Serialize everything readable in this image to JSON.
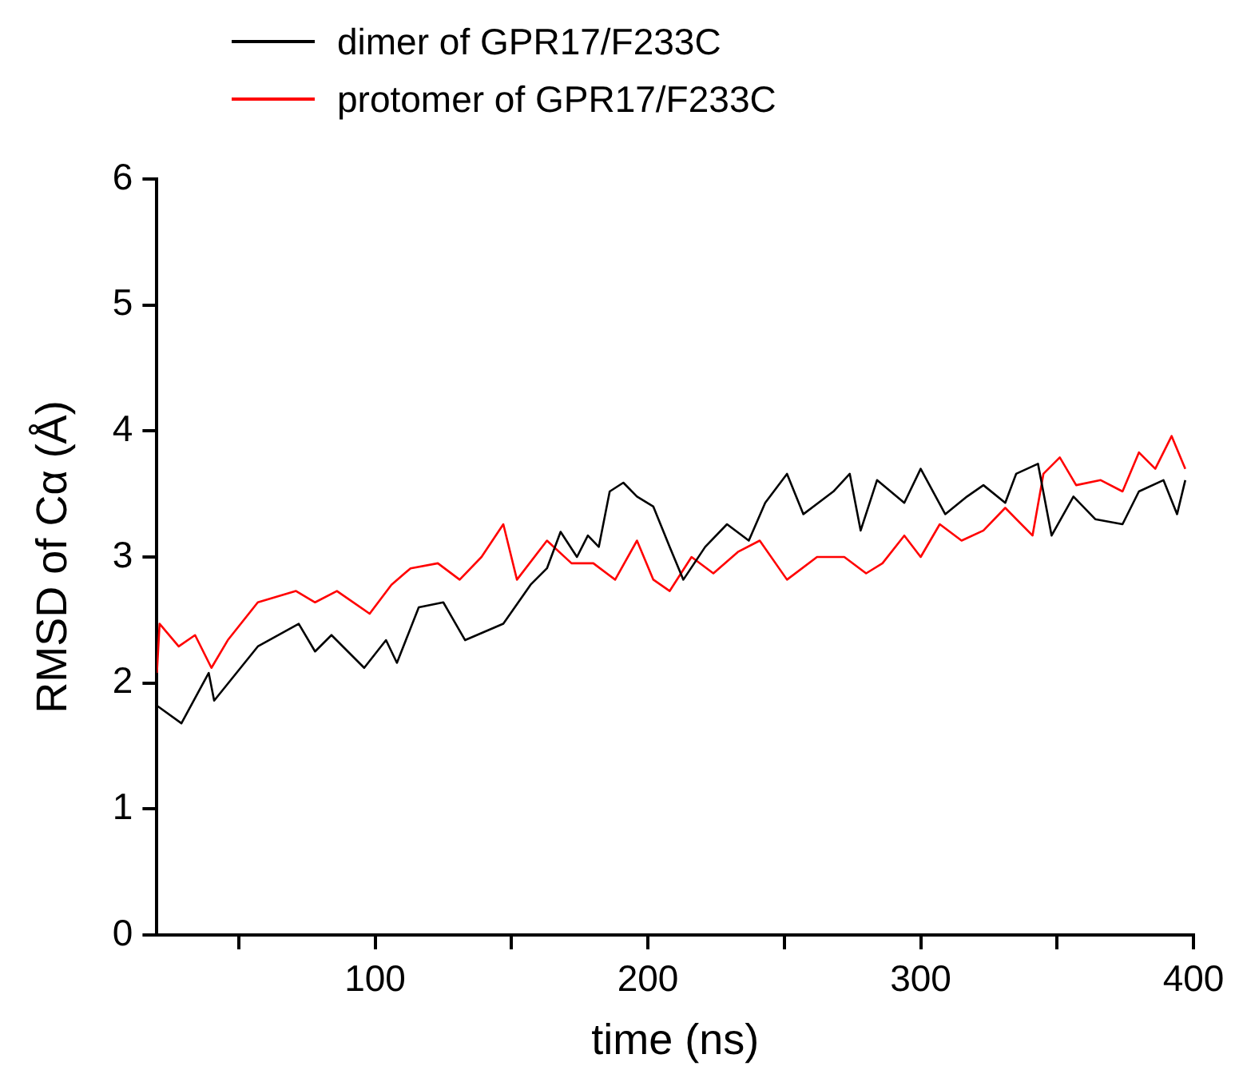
{
  "chart_data": {
    "type": "line",
    "xlabel": "time (ns)",
    "ylabel": "RMSD of Cα (Å)",
    "xlim": [
      20,
      400
    ],
    "xticks": [
      {
        "value": 50,
        "label": null
      },
      100,
      {
        "value": 150,
        "label": null
      },
      200,
      {
        "value": 250,
        "label": null
      },
      300,
      {
        "value": 350,
        "label": null
      },
      400
    ],
    "ylim": [
      0,
      6
    ],
    "yticks": [
      0,
      1,
      2,
      3,
      4,
      5,
      6
    ],
    "grid": false,
    "legend": "top left",
    "marker": "none",
    "line_style": "solid",
    "series": [
      {
        "name": "dimer of GPR17/F233C",
        "color": "#000000",
        "x": [
          20,
          29,
          39,
          41,
          57,
          72,
          78,
          84,
          96,
          104,
          108,
          116,
          125,
          133,
          147,
          157,
          163,
          168,
          174,
          178,
          182,
          186,
          191,
          196,
          202,
          208,
          213,
          221,
          229,
          237,
          243,
          251,
          257,
          268,
          274,
          278,
          284,
          294,
          300,
          309,
          317,
          323,
          331,
          335,
          343,
          348,
          356,
          364,
          374,
          380,
          389,
          394,
          397
        ],
        "values": [
          1.82,
          1.68,
          2.08,
          1.86,
          2.29,
          2.47,
          2.25,
          2.38,
          2.12,
          2.34,
          2.16,
          2.6,
          2.64,
          2.34,
          2.47,
          2.78,
          2.91,
          3.2,
          3.0,
          3.17,
          3.08,
          3.52,
          3.59,
          3.48,
          3.4,
          3.08,
          2.82,
          3.08,
          3.26,
          3.13,
          3.43,
          3.66,
          3.34,
          3.52,
          3.66,
          3.21,
          3.61,
          3.43,
          3.7,
          3.34,
          3.48,
          3.57,
          3.43,
          3.66,
          3.74,
          3.17,
          3.48,
          3.3,
          3.26,
          3.52,
          3.61,
          3.34,
          3.61
        ]
      },
      {
        "name": "protomer of GPR17/F233C",
        "color": "#ff0000",
        "x": [
          20,
          21,
          28,
          34,
          40,
          46,
          57,
          71,
          78,
          86,
          98,
          106,
          113,
          123,
          131,
          139,
          147,
          152,
          163,
          172,
          180,
          188,
          196,
          202,
          208,
          216,
          224,
          233,
          241,
          251,
          262,
          272,
          280,
          286,
          294,
          300,
          307,
          315,
          323,
          331,
          341,
          345,
          351,
          357,
          366,
          374,
          380,
          386,
          392,
          397
        ],
        "values": [
          2.08,
          2.47,
          2.29,
          2.38,
          2.12,
          2.34,
          2.64,
          2.73,
          2.64,
          2.73,
          2.55,
          2.78,
          2.91,
          2.95,
          2.82,
          3.0,
          3.26,
          2.82,
          3.13,
          2.95,
          2.95,
          2.82,
          3.13,
          2.82,
          2.73,
          3.0,
          2.87,
          3.04,
          3.13,
          2.82,
          3.0,
          3.0,
          2.87,
          2.95,
          3.17,
          3.0,
          3.26,
          3.13,
          3.21,
          3.39,
          3.17,
          3.66,
          3.79,
          3.57,
          3.61,
          3.52,
          3.83,
          3.7,
          3.96,
          3.7
        ]
      }
    ]
  }
}
